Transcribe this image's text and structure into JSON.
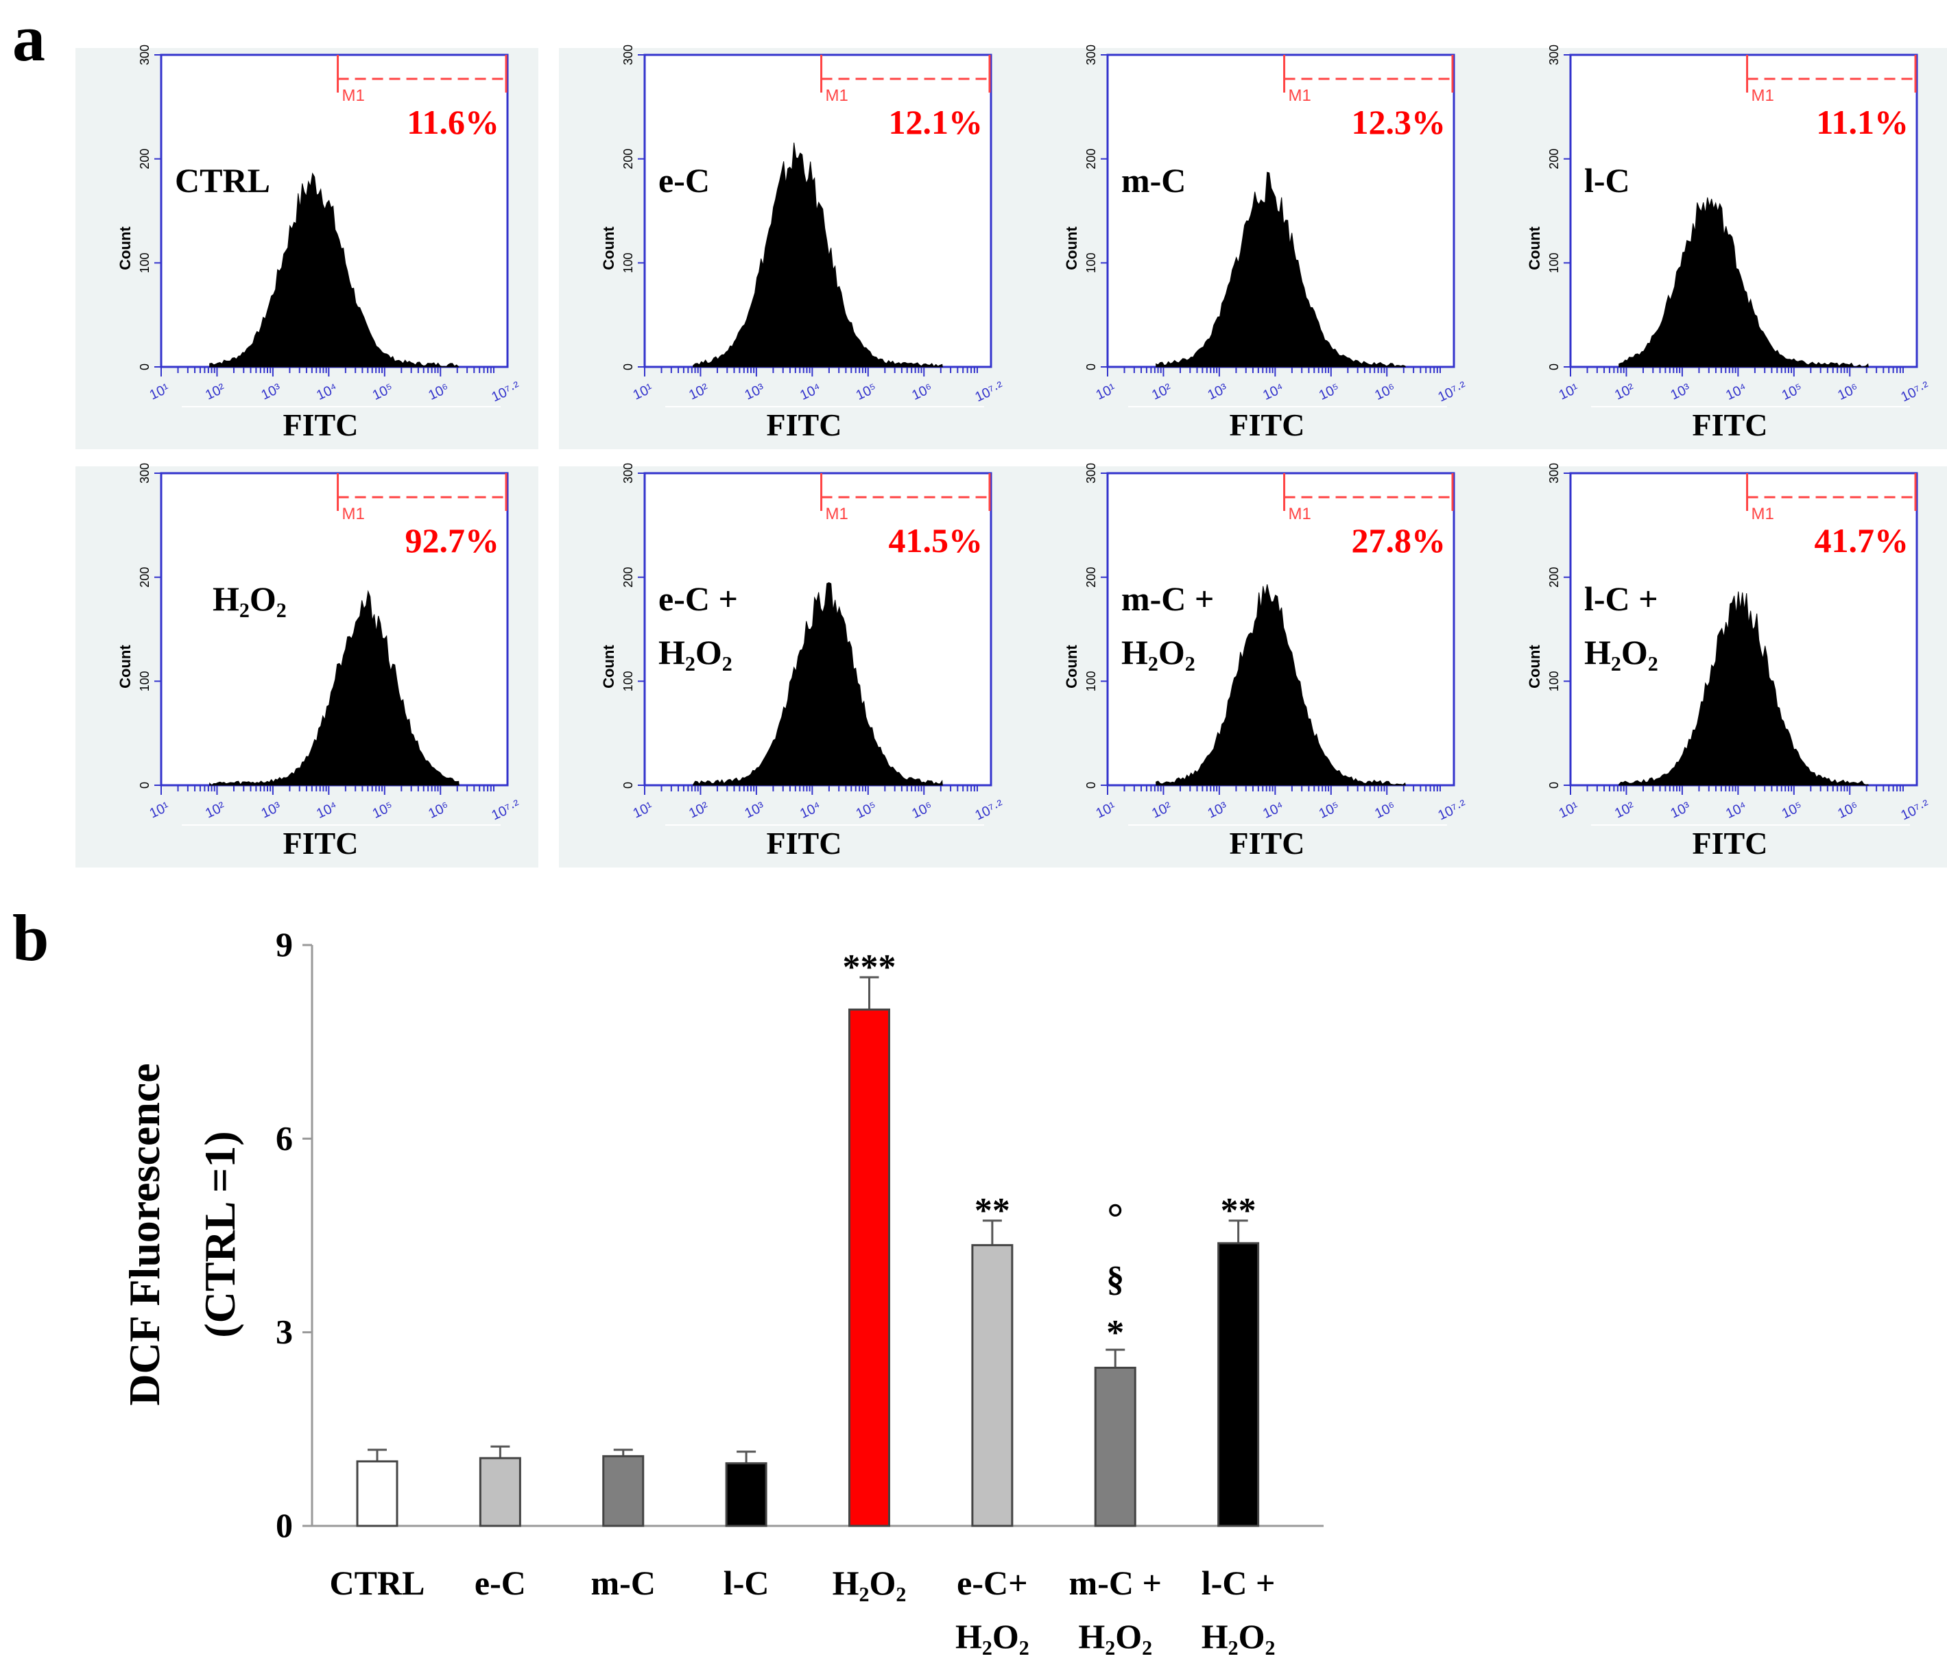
{
  "panel_labels": {
    "a": "a",
    "b": "b"
  },
  "histogram_axis": {
    "y_label": "Count",
    "y_ticks": [
      "0",
      "100",
      "200",
      "300"
    ],
    "x_ticks": [
      "10¹",
      "10²",
      "10³",
      "10⁴",
      "10⁵",
      "10⁶",
      "10⁷·²"
    ],
    "x_label": "FITC",
    "gate_label": "M1"
  },
  "histograms": [
    {
      "label": [
        "CTRL"
      ],
      "percent": "11.6%",
      "peak_count": 170,
      "peak_pos": 0.44
    },
    {
      "label": [
        "e-C"
      ],
      "percent": "12.1%",
      "peak_count": 195,
      "peak_pos": 0.44
    },
    {
      "label": [
        "m-C"
      ],
      "percent": "12.3%",
      "peak_count": 165,
      "peak_pos": 0.46
    },
    {
      "label": [
        "l-C"
      ],
      "percent": "11.1%",
      "peak_count": 150,
      "peak_pos": 0.4
    },
    {
      "label": [
        "H₂O₂"
      ],
      "percent": "92.7%",
      "peak_count": 165,
      "peak_pos": 0.59
    },
    {
      "label": [
        "e-C +",
        "H₂O₂"
      ],
      "percent": "41.5%",
      "peak_count": 175,
      "peak_pos": 0.52
    },
    {
      "label": [
        "m-C +",
        "H₂O₂"
      ],
      "percent": "27.8%",
      "peak_count": 170,
      "peak_pos": 0.46
    },
    {
      "label": [
        "l-C +",
        "H₂O₂"
      ],
      "percent": "41.7%",
      "peak_count": 170,
      "peak_pos": 0.49
    }
  ],
  "chart_data": {
    "type": "bar",
    "title": "",
    "ylabel": [
      "DCF Fluorescence",
      "(CTRL =1)"
    ],
    "xlabel": "",
    "ylim": [
      0,
      9
    ],
    "yticks": [
      0,
      3,
      6,
      9
    ],
    "categories": [
      [
        "CTRL"
      ],
      [
        "e-C"
      ],
      [
        "m-C"
      ],
      [
        "l-C"
      ],
      [
        "H₂O₂"
      ],
      [
        "e-C+",
        "H₂O₂"
      ],
      [
        "m-C +",
        "H₂O₂"
      ],
      [
        "l-C +",
        "H₂O₂"
      ]
    ],
    "values": [
      1.0,
      1.05,
      1.08,
      0.97,
      8.0,
      4.35,
      2.45,
      4.38
    ],
    "errors": [
      0.18,
      0.18,
      0.1,
      0.18,
      0.5,
      0.38,
      0.28,
      0.35
    ],
    "colors": [
      "#ffffff",
      "#c0c0c0",
      "#7f7f7f",
      "#000000",
      "#ff0000",
      "#c0c0c0",
      "#7f7f7f",
      "#000000"
    ],
    "annotations": [
      [],
      [],
      [],
      [],
      [
        "***"
      ],
      [
        "**"
      ],
      [
        "*",
        "§",
        "°"
      ],
      [
        "**"
      ]
    ]
  }
}
